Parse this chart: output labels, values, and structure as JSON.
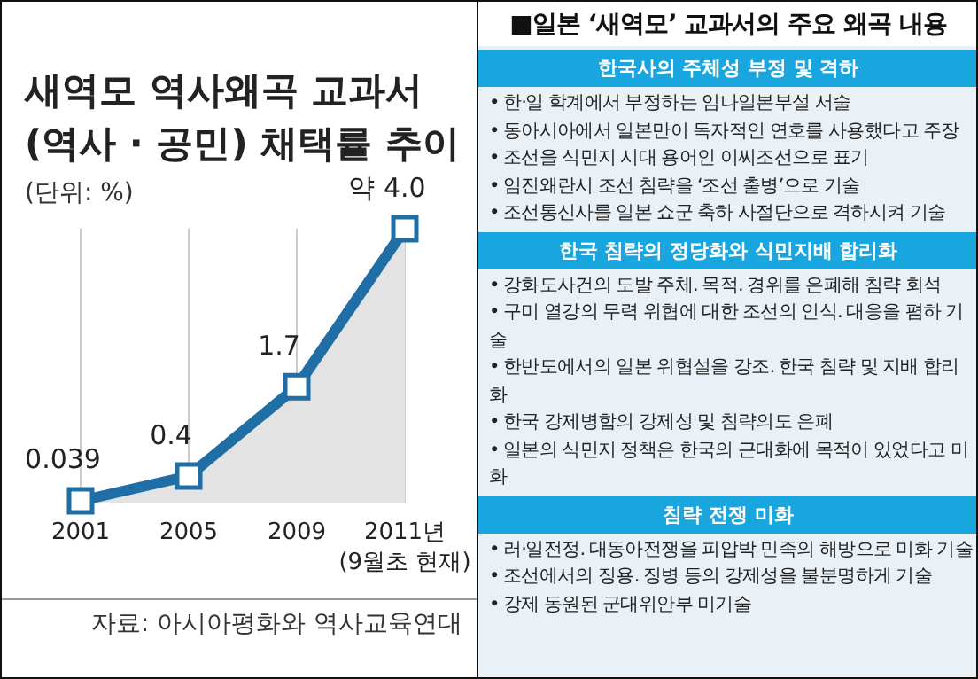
{
  "chart_data": [
    {
      "type": "area",
      "title": "새역모 역사왜곡 교과서\n(역사 · 공민) 채택률 추이",
      "subtitle": "(단위: %)",
      "categories": [
        "2001",
        "2005",
        "2009",
        "2011년\n(9월초 현재)"
      ],
      "series": [
        {
          "color": "#1f6ea6",
          "values": [
            0.039,
            0.4,
            1.7,
            4.0
          ],
          "value_labels": [
            "0.039",
            "0.4",
            "1.7",
            "약 4.0"
          ]
        }
      ],
      "marker": "square",
      "grid": "x",
      "tick_labels": "x",
      "annotations": [
        "자료: 아시아평화와 역사교육연대"
      ]
    },
    {
      "type": "other",
      "title": "■일본 ‘새역모’ 교과서의 주요 왜곡 내용",
      "subtitle": "한국사의 주체성 부정 및 격하",
      "annotations": [
        "• 한·일 학계에서 부정하는 임나일본부설 서술",
        "• 동아시아에서 일본만이 독자적인 연호를 사용했다고 주장",
        "• 조선을 식민지 시대 용어인 이씨조선으로 표기",
        "• 임진왜란시 조선 침략을 ‘조선 출병’으로 기술",
        "• 조선통신사를 일본 쇼군 축하 사절단으로 격하시켜 기술"
      ]
    },
    {
      "type": "other",
      "subtitle": "한국 침략의 정당화와 식민지배 합리화",
      "annotations": [
        "• 강화도사건의 도발 주체. 목적. 경위를 은폐해 침략 회석",
        "• 구미 열강의 무력 위협에 대한 조선의 인식. 대응을 폄하 기술",
        "• 한반도에서의 일본 위협설을 강조. 한국 침략 및 지배 합리화",
        "• 한국 강제병합의 강제성 및 침략의도 은폐",
        "• 일본의 식민지 정책은 한국의 근대화에 목적이 있었다고 미화"
      ]
    },
    {
      "type": "other",
      "subtitle": "침략 전쟁 미화",
      "annotations": [
        "• 러·일전정. 대동아전쟁을 피압박 민족의 해방으로 미화 기술",
        "• 조선에서의 징용. 징병 등의 강제성을 불분명하게 기술",
        "• 강제 동원된 군대위안부 미기술"
      ]
    }
  ]
}
